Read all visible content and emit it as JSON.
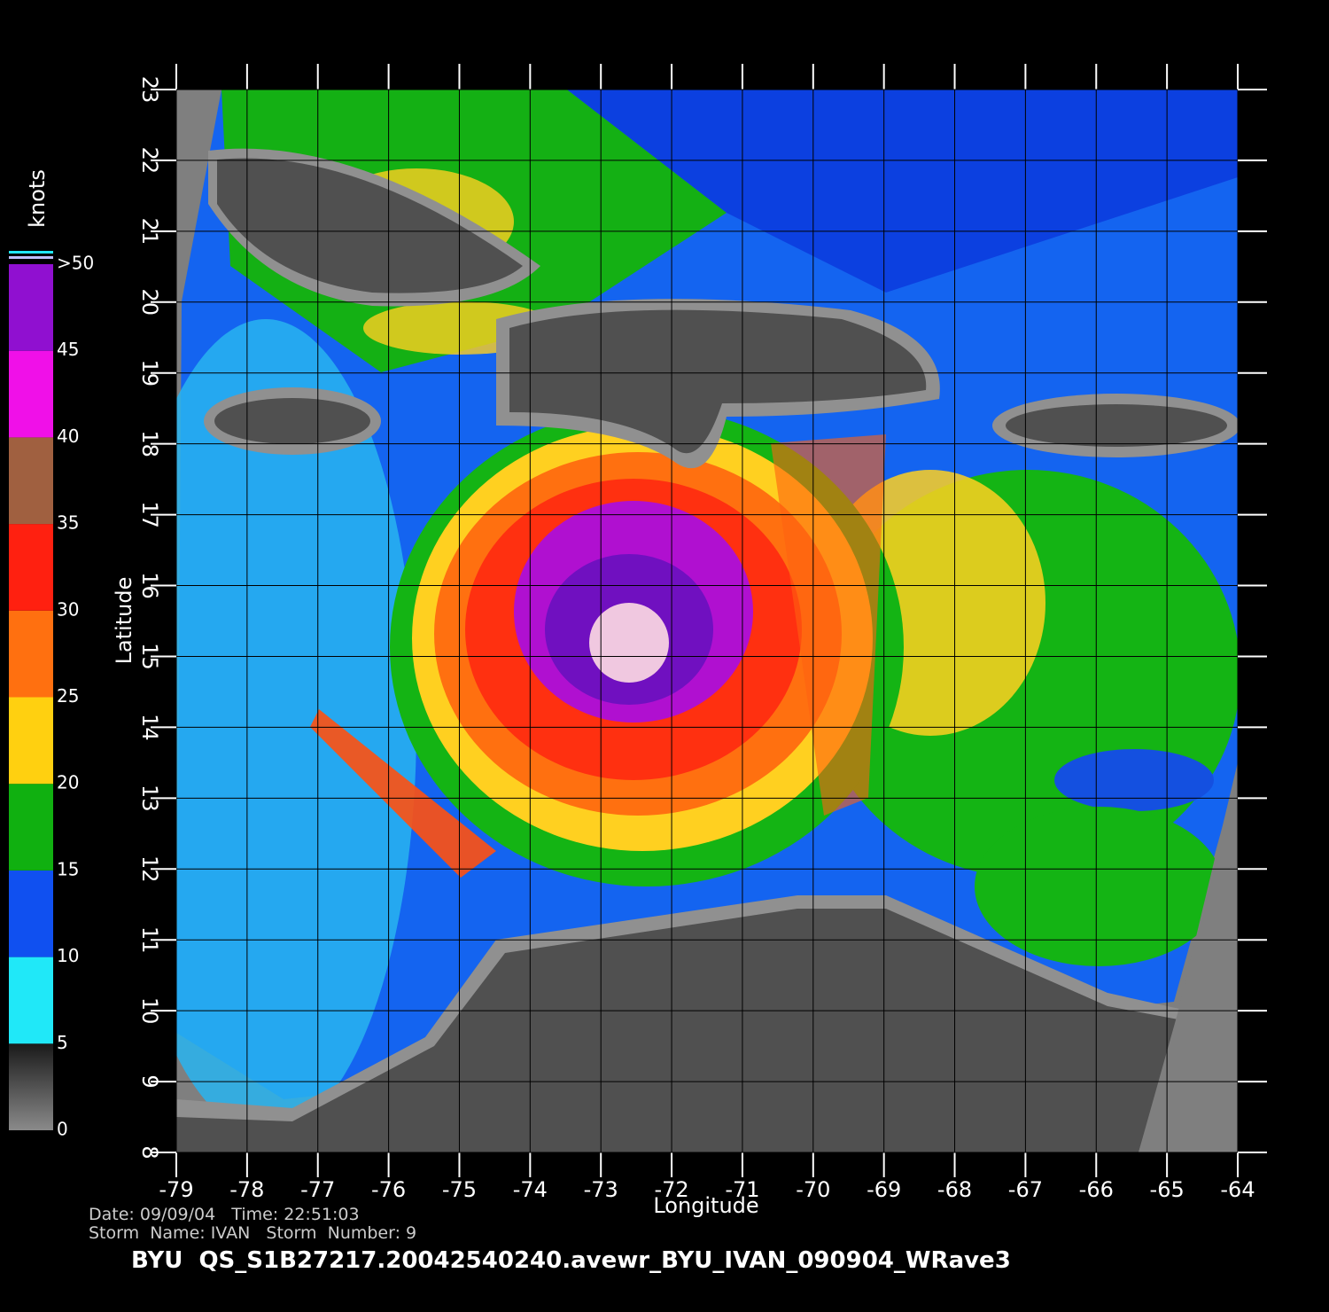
{
  "map": {
    "xlabel": "Longitude",
    "ylabel": "Latitude",
    "xlim": [
      -79,
      -64
    ],
    "ylim": [
      8,
      23
    ],
    "xticks": [
      -79,
      -78,
      -77,
      -76,
      -75,
      -74,
      -73,
      -72,
      -71,
      -70,
      -69,
      -68,
      -67,
      -66,
      -65,
      -64
    ],
    "yticks": [
      8,
      9,
      10,
      11,
      12,
      13,
      14,
      15,
      16,
      17,
      18,
      19,
      20,
      21,
      22,
      23
    ],
    "grid": true,
    "colorbar": {
      "label": "knots",
      "lim": [
        0,
        50
      ],
      "ticks": [
        0,
        5,
        10,
        15,
        20,
        25,
        30,
        35,
        40,
        45,
        {
          "value": 50,
          "label": ">50"
        }
      ],
      "colors": [
        "#7a7a7a",
        "#20e8f8",
        "#1050f0",
        "#10b010",
        "#ffd010",
        "#ff7010",
        "#ff2010",
        "#a06040",
        "#f010e8",
        "#9010d0"
      ]
    },
    "footer": {
      "line1": "Date: 09/09/04   Time: 22:51:03",
      "line2": "Storm  Name: IVAN   Storm  Number: 9",
      "title": "BYU  QS_S1B27217.20042540240.avewr_BYU_IVAN_090904_WRave3"
    }
  }
}
